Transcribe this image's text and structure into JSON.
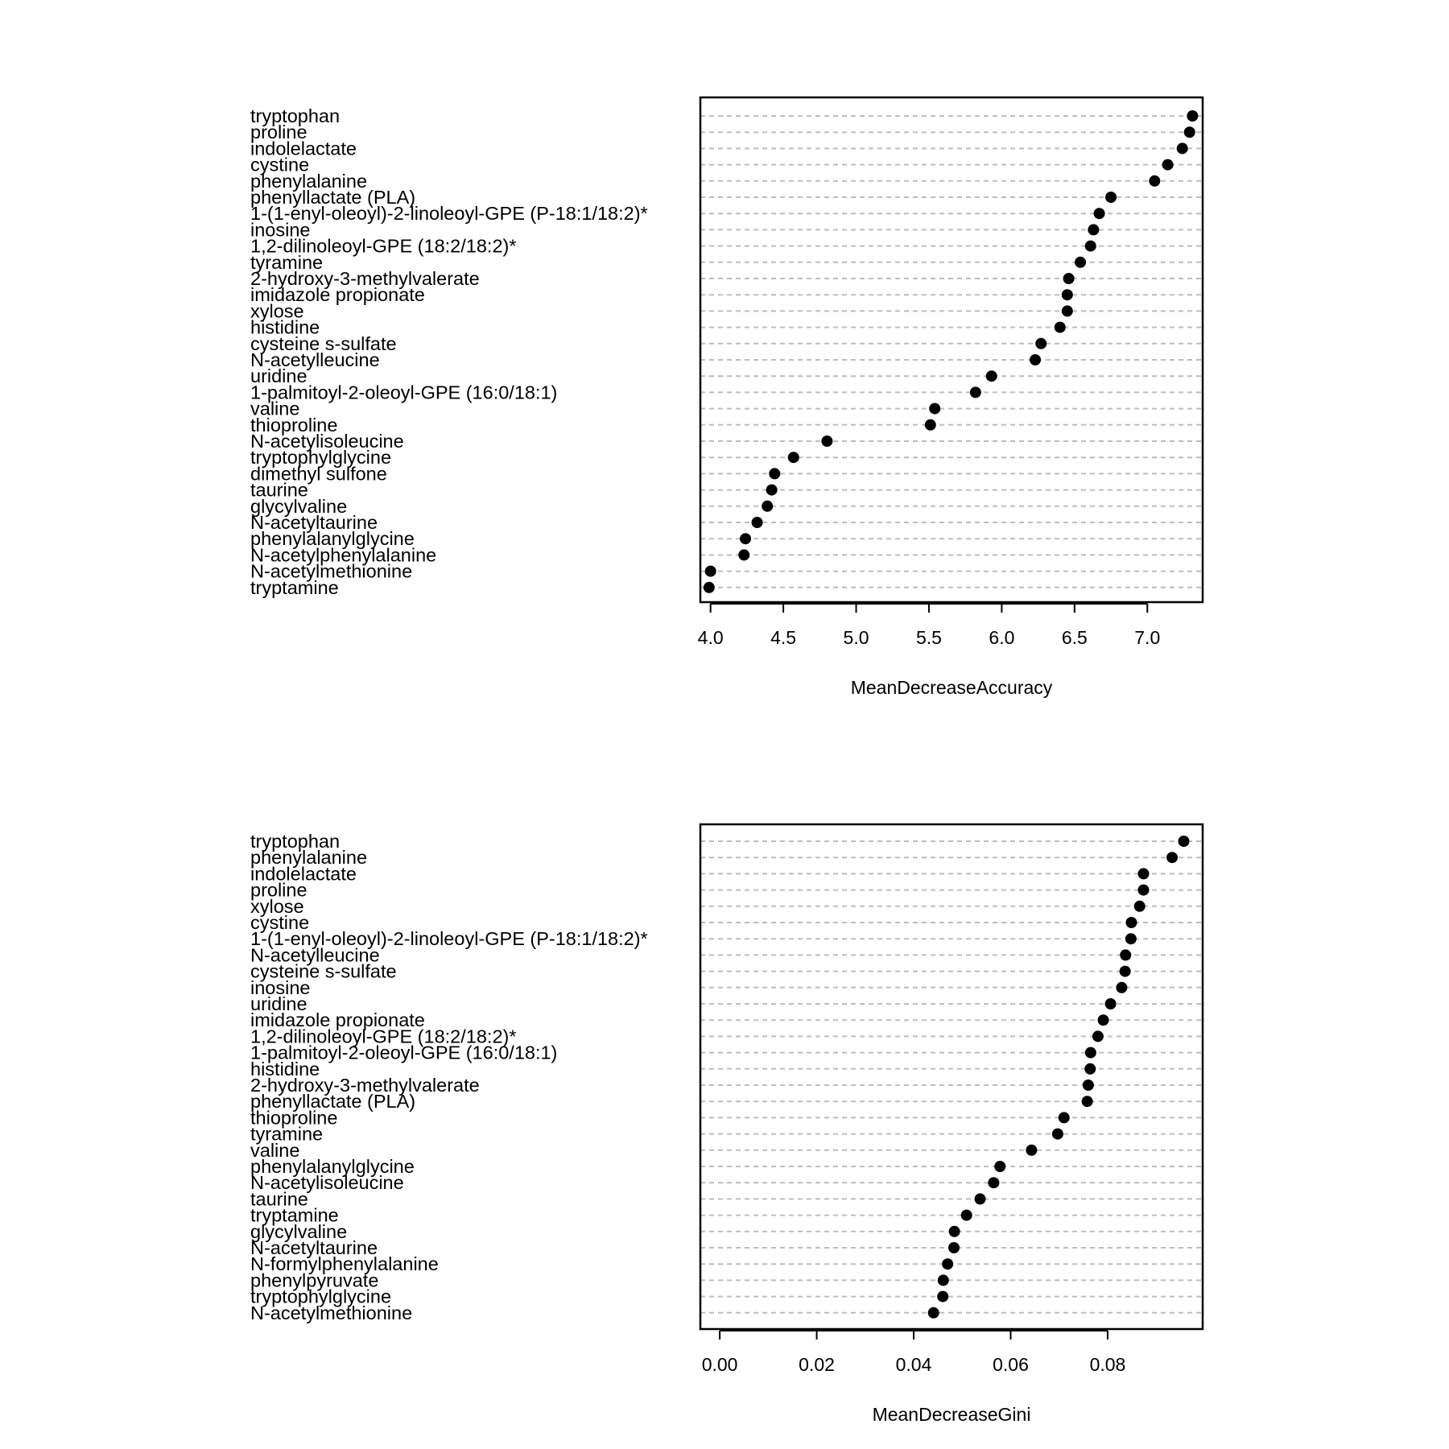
{
  "chart_data": [
    {
      "type": "scatter",
      "subtype": "dotchart",
      "xlabel": "MeanDecreaseAccuracy",
      "xlim": [
        3.93,
        7.38
      ],
      "xticks": [
        "4.0",
        "4.5",
        "5.0",
        "5.5",
        "6.0",
        "6.5",
        "7.0"
      ],
      "grid": true,
      "categories": [
        "tryptophan",
        "proline",
        "indolelactate",
        "cystine",
        "phenylalanine",
        "phenyllactate (PLA)",
        "1-(1-enyl-oleoyl)-2-linoleoyl-GPE (P-18:1/18:2)*",
        "inosine",
        "1,2-dilinoleoyl-GPE (18:2/18:2)*",
        "tyramine",
        "2-hydroxy-3-methylvalerate",
        "imidazole propionate",
        "xylose",
        "histidine",
        "cysteine s-sulfate",
        "N-acetylleucine",
        "uridine",
        "1-palmitoyl-2-oleoyl-GPE (16:0/18:1)",
        "valine",
        "thioproline",
        "N-acetylisoleucine",
        "tryptophylglycine",
        "dimethyl sulfone",
        "taurine",
        "glycylvaline",
        "N-acetyltaurine",
        "phenylalanylglycine",
        "N-acetylphenylalanine",
        "N-acetylmethionine",
        "tryptamine"
      ],
      "values": [
        7.31,
        7.29,
        7.24,
        7.14,
        7.05,
        6.75,
        6.67,
        6.63,
        6.61,
        6.54,
        6.46,
        6.45,
        6.45,
        6.4,
        6.27,
        6.23,
        5.93,
        5.82,
        5.54,
        5.51,
        4.8,
        4.57,
        4.44,
        4.42,
        4.39,
        4.32,
        4.24,
        4.23,
        4.0,
        3.99
      ]
    },
    {
      "type": "scatter",
      "subtype": "dotchart",
      "xlabel": "MeanDecreaseGini",
      "xlim": [
        -0.004,
        0.0996
      ],
      "xticks": [
        "0.00",
        "0.02",
        "0.04",
        "0.06",
        "0.08"
      ],
      "grid": true,
      "categories": [
        "tryptophan",
        "phenylalanine",
        "indolelactate",
        "proline",
        "xylose",
        "cystine",
        "1-(1-enyl-oleoyl)-2-linoleoyl-GPE (P-18:1/18:2)*",
        "N-acetylleucine",
        "cysteine s-sulfate",
        "inosine",
        "uridine",
        "imidazole propionate",
        "1,2-dilinoleoyl-GPE (18:2/18:2)*",
        "1-palmitoyl-2-oleoyl-GPE (16:0/18:1)",
        "histidine",
        "2-hydroxy-3-methylvalerate",
        "phenyllactate (PLA)",
        "thioproline",
        "tyramine",
        "valine",
        "phenylalanylglycine",
        "N-acetylisoleucine",
        "taurine",
        "tryptamine",
        "glycylvaline",
        "N-acetyltaurine",
        "N-formylphenylalanine",
        "phenylpyruvate",
        "tryptophylglycine",
        "N-acetylmethionine"
      ],
      "values": [
        0.0957,
        0.0933,
        0.0874,
        0.0874,
        0.0866,
        0.0849,
        0.0848,
        0.0837,
        0.0836,
        0.0829,
        0.0806,
        0.0791,
        0.078,
        0.0765,
        0.0764,
        0.076,
        0.0758,
        0.071,
        0.0697,
        0.0643,
        0.0578,
        0.0565,
        0.0537,
        0.0509,
        0.0484,
        0.0483,
        0.047,
        0.0461,
        0.046,
        0.0441
      ]
    }
  ]
}
